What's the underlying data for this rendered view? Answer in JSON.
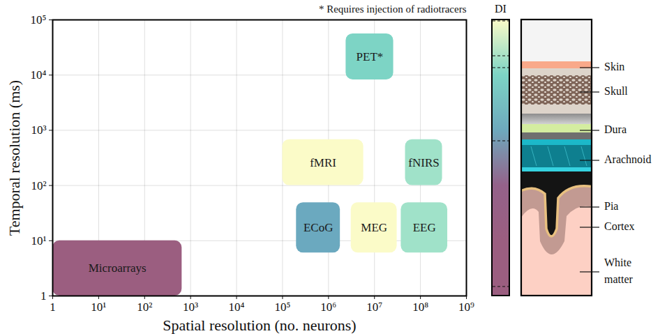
{
  "chart_data": {
    "type": "rectangle",
    "annotation": "* Requires injection of radiotracers",
    "xlabel": "Spatial resolution (no. neurons)",
    "ylabel": "Temporal resolution (ms)",
    "log": true,
    "grid": true,
    "xlim": [
      1,
      1000000000
    ],
    "ylim": [
      1,
      100000
    ],
    "xticks": [
      1,
      {
        "value": 10,
        "label": "10¹"
      },
      {
        "value": 100,
        "label": "10²"
      },
      {
        "value": 1000,
        "label": "10³"
      },
      {
        "value": 10000,
        "label": "10⁴"
      },
      {
        "value": 100000,
        "label": "10⁵"
      },
      {
        "value": 1000000,
        "label": "10⁶"
      },
      {
        "value": 10000000,
        "label": "10⁷"
      },
      {
        "value": 100000000,
        "label": "10⁸"
      },
      {
        "value": 1000000000,
        "label": "10⁹"
      }
    ],
    "yticks": [
      1,
      {
        "value": 10,
        "label": "10¹"
      },
      {
        "value": 100,
        "label": "10²"
      },
      {
        "value": 1000,
        "label": "10³"
      },
      {
        "value": 10000,
        "label": "10⁴"
      },
      {
        "value": 100000,
        "label": "10⁵"
      }
    ],
    "boxes": [
      {
        "name": "Microarrays",
        "x": [
          1,
          650
        ],
        "y": [
          1,
          10
        ],
        "color": "#9b5e80"
      },
      {
        "name": "ECoG",
        "x": [
          200000,
          1800000
        ],
        "y": [
          6,
          49
        ],
        "color": "#6ba9bf"
      },
      {
        "name": "MEG",
        "x": [
          3100000,
          31000000
        ],
        "y": [
          6,
          49
        ],
        "color": "#fbfbc8"
      },
      {
        "name": "EEG",
        "x": [
          38000000,
          390000000
        ],
        "y": [
          6,
          49
        ],
        "color": "#a0e2c9"
      },
      {
        "name": "fMRI",
        "x": [
          100000,
          5800000
        ],
        "y": [
          100,
          680
        ],
        "color": "#fbfbc8"
      },
      {
        "name": "fNIRS",
        "x": [
          47000000,
          300000000
        ],
        "y": [
          100,
          680
        ],
        "color": "#a0e2c9"
      },
      {
        "name": "PET*",
        "x": [
          2400000,
          26000000
        ],
        "y": [
          8200,
          56000
        ],
        "color": "#7dd4c5"
      }
    ],
    "colorbar": {
      "title": "DI",
      "colors": [
        "#fbfbc8",
        "#7dd4c5",
        "#6ea9bd",
        "#94628a",
        "#9b5e80",
        "#9b5e80"
      ]
    }
  },
  "diagram": {
    "layers": [
      {
        "label": "Skin",
        "color": "#f9a98a"
      },
      {
        "label": "Skull",
        "color": "#ddd4ca"
      },
      {
        "label": "Dura",
        "color": "#d4eda0"
      },
      {
        "label": "Arachnoid",
        "color": "#1cb8c9"
      },
      {
        "label": "Pia",
        "color": "#e8c080"
      },
      {
        "label": "Cortex",
        "color": "#c29a92"
      },
      {
        "label": "White matter",
        "color": "#fdd0c4"
      }
    ]
  }
}
